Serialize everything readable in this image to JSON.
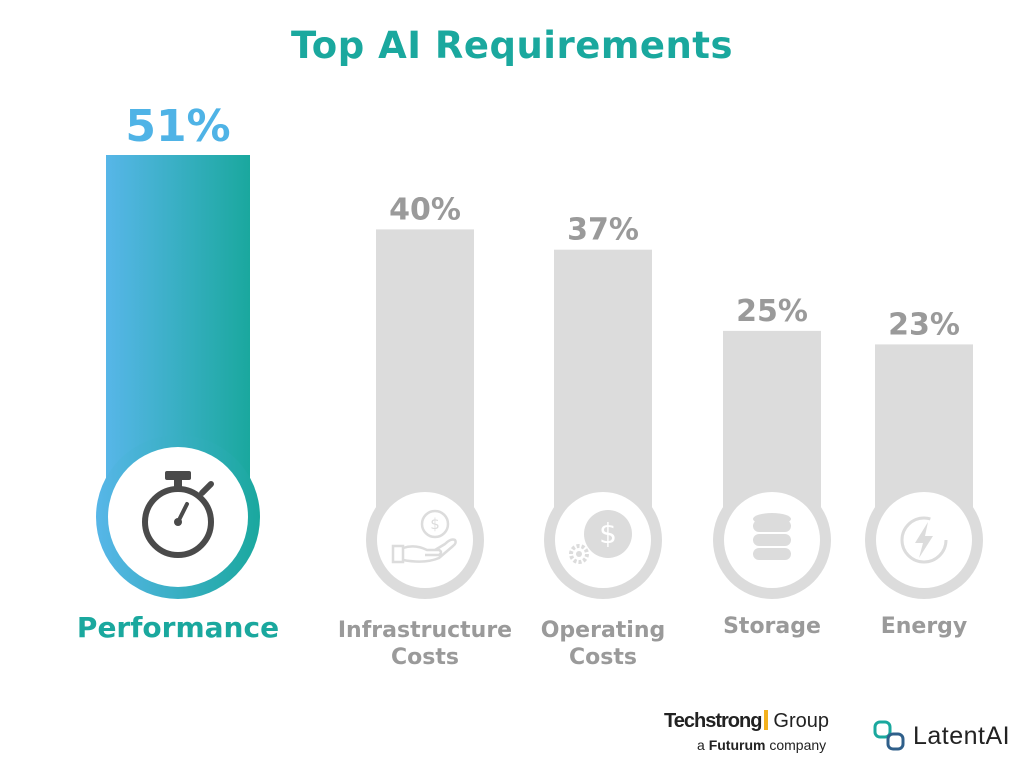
{
  "chart_data": {
    "type": "bar",
    "title": "Top AI Requirements",
    "categories": [
      "Performance",
      "Infrastructure Costs",
      "Operating Costs",
      "Storage",
      "Energy"
    ],
    "values": [
      51,
      40,
      37,
      25,
      23
    ],
    "value_labels": [
      "51%",
      "40%",
      "37%",
      "25%",
      "23%"
    ],
    "highlight_index": 0,
    "icons": [
      "stopwatch-icon",
      "hand-dollar-icon",
      "dollar-gear-icon",
      "database-icon",
      "lightning-icon"
    ],
    "colors": {
      "highlight_gradient_start": "#57b6e8",
      "highlight_gradient_end": "#1aa89e",
      "highlight_text": "#1aa89e",
      "highlight_value": "#4fb3e6",
      "bar_gray": "#dcdcdc",
      "label_gray": "#9a9a9a",
      "icon_dark": "#4a4a4a"
    },
    "ylim": [
      0,
      51
    ]
  },
  "footer": {
    "techstrong_name": "Techstrong",
    "techstrong_group": "Group",
    "techstrong_prefix": "a",
    "techstrong_parent": "Futurum",
    "techstrong_suffix": "company",
    "latent_name": "LatentAI"
  }
}
